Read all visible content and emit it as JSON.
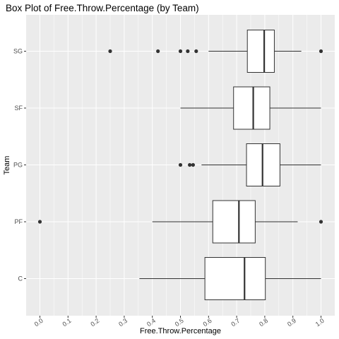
{
  "chart_data": {
    "type": "boxplot",
    "orientation": "horizontal",
    "title": "Box Plot of Free.Throw.Percentage (by Team)",
    "xlabel": "Free.Throw.Percentage",
    "ylabel": "Team",
    "xlim": [
      -0.05,
      1.05
    ],
    "x_ticks": [
      "0.0",
      "0.1",
      "0.2",
      "0.3",
      "0.4",
      "0.5",
      "0.6",
      "0.7",
      "0.8",
      "0.9",
      "1.0"
    ],
    "categories": [
      "C",
      "PF",
      "PG",
      "SF",
      "SG"
    ],
    "series": [
      {
        "category": "C",
        "min": 0.354,
        "q1": 0.587,
        "median": 0.728,
        "q3": 0.802,
        "max": 1.0,
        "outliers": []
      },
      {
        "category": "PF",
        "min": 0.4,
        "q1": 0.615,
        "median": 0.708,
        "q3": 0.766,
        "max": 0.917,
        "outliers": [
          0.0,
          1.0
        ]
      },
      {
        "category": "PG",
        "min": 0.575,
        "q1": 0.735,
        "median": 0.792,
        "q3": 0.854,
        "max": 1.0,
        "outliers": [
          0.5,
          0.533,
          0.545
        ]
      },
      {
        "category": "SF",
        "min": 0.5,
        "q1": 0.689,
        "median": 0.759,
        "q3": 0.818,
        "max": 1.0,
        "outliers": []
      },
      {
        "category": "SG",
        "min": 0.6,
        "q1": 0.738,
        "median": 0.798,
        "q3": 0.834,
        "max": 0.93,
        "outliers": [
          0.25,
          0.42,
          0.5,
          0.526,
          0.556,
          1.0
        ]
      }
    ],
    "grid": true,
    "legend": "none"
  }
}
